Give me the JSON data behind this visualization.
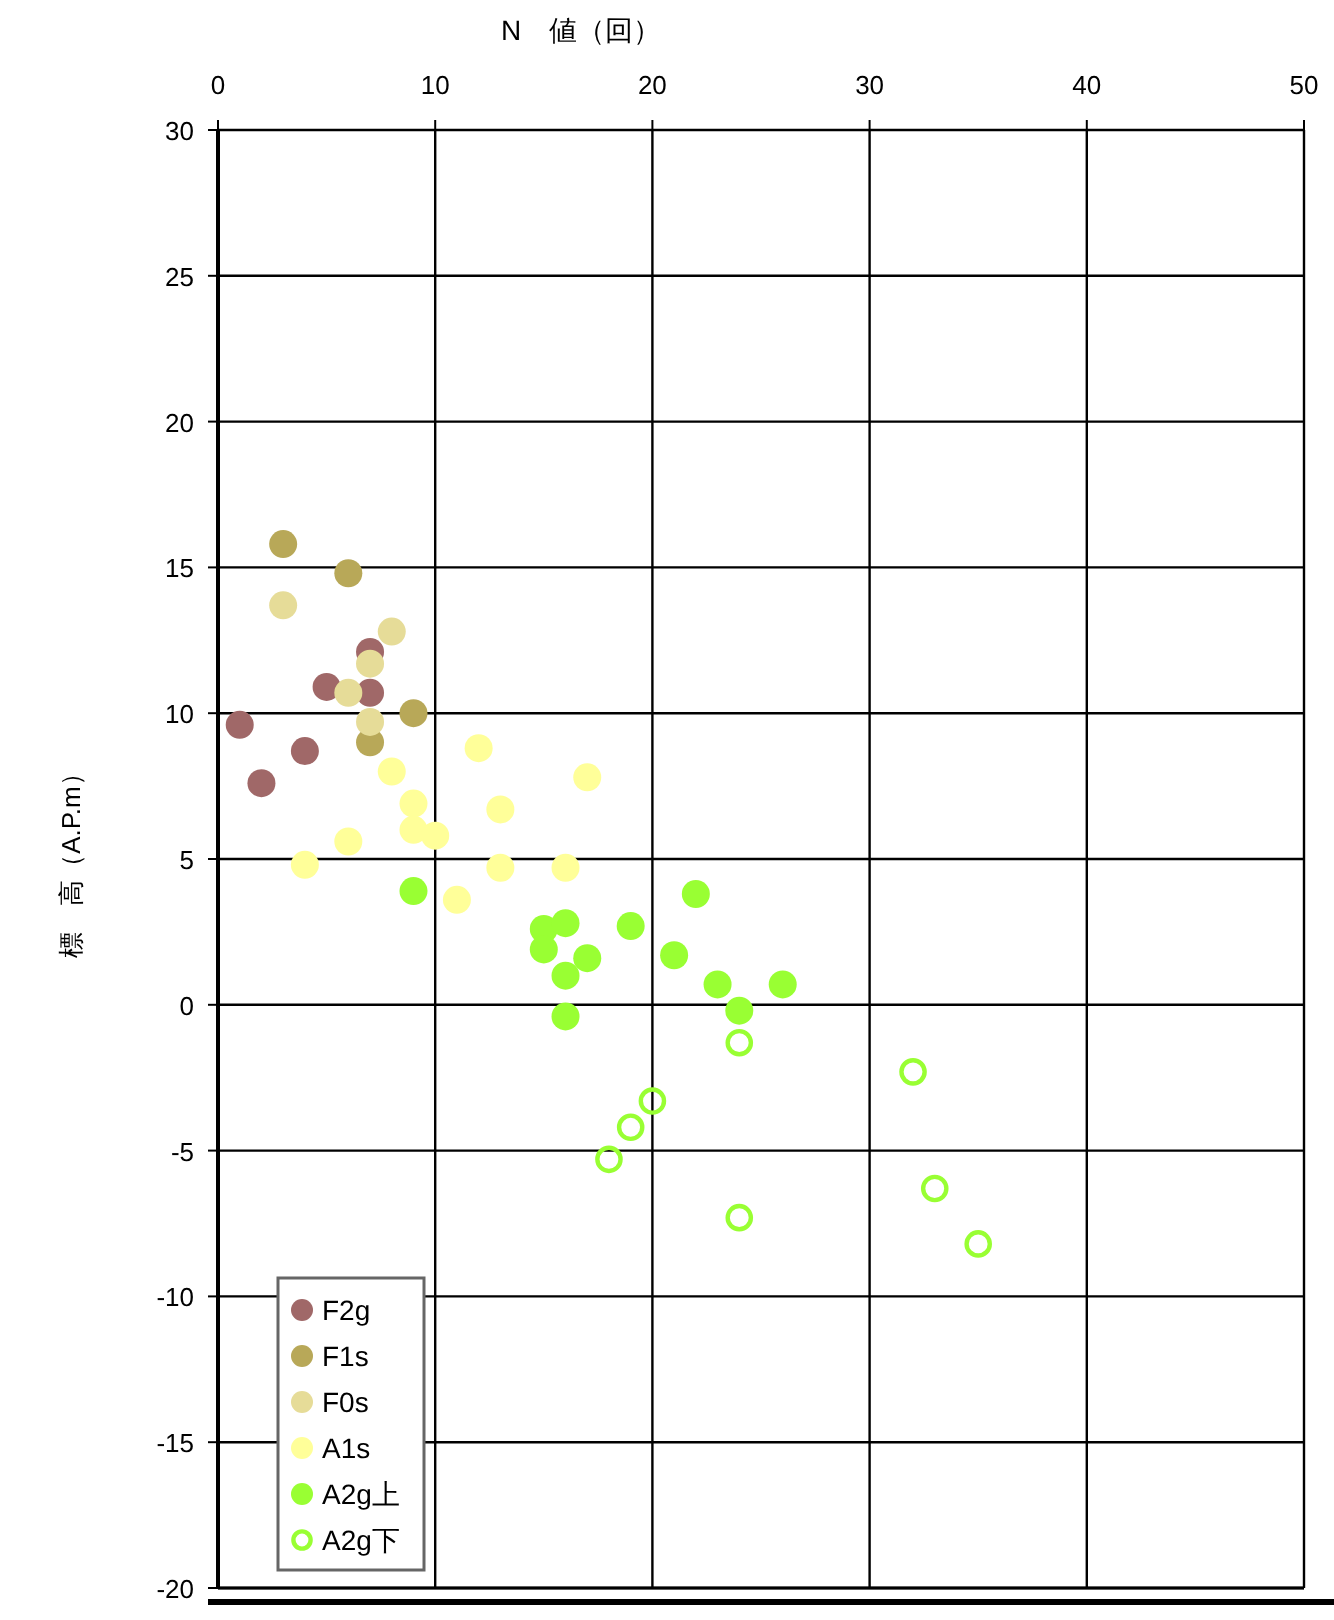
{
  "chart_data": {
    "type": "scatter",
    "xlabel": "N　値（回）",
    "ylabel": "標　高（A.P.m）",
    "xlim": [
      0,
      50
    ],
    "xticks": [
      0,
      10,
      20,
      30,
      40,
      50
    ],
    "ylim": [
      -20,
      30
    ],
    "yticks": [
      -20,
      -15,
      -10,
      -5,
      0,
      5,
      10,
      15,
      20,
      25,
      30
    ],
    "grid": true,
    "legend": "bottom left",
    "marker": "circle",
    "series": [
      {
        "name": "F2g",
        "color": "#a06868",
        "x": [
          7,
          5,
          7,
          1,
          4,
          2
        ],
        "values": [
          12.1,
          10.9,
          10.7,
          9.6,
          8.7,
          7.6
        ]
      },
      {
        "name": "F1s",
        "color": "#b8a858",
        "x": [
          3,
          6,
          9,
          7
        ],
        "values": [
          15.8,
          14.8,
          10,
          9
        ]
      },
      {
        "name": "F0s",
        "color": "#e6dc98",
        "x": [
          3,
          8,
          7,
          6,
          7
        ],
        "values": [
          13.7,
          12.8,
          11.7,
          10.7,
          9.7
        ]
      },
      {
        "name": "A1s",
        "color": "#ffff99",
        "x": [
          12,
          17,
          8,
          9,
          9,
          10,
          13,
          6,
          4,
          13,
          16,
          11
        ],
        "values": [
          8.8,
          7.8,
          8,
          6.9,
          6,
          5.8,
          6.7,
          5.6,
          4.8,
          4.7,
          4.7,
          3.6
        ]
      },
      {
        "name": "A2g上",
        "color": "#99ff33",
        "x": [
          9,
          22,
          15,
          16,
          19,
          15,
          17,
          21,
          16,
          23,
          26,
          24,
          16
        ],
        "values": [
          3.9,
          3.8,
          2.6,
          2.8,
          2.7,
          1.9,
          1.6,
          1.7,
          1,
          0.7,
          0.7,
          -0.2,
          -0.4
        ]
      },
      {
        "name": "A2g下",
        "color": "#99ff33",
        "marker": "circle-open",
        "x": [
          24,
          20,
          19,
          18,
          32,
          33,
          24,
          35
        ],
        "values": [
          -1.3,
          -3.3,
          -4.2,
          -5.3,
          -2.3,
          -6.3,
          -7.3,
          -8.2
        ]
      }
    ]
  }
}
